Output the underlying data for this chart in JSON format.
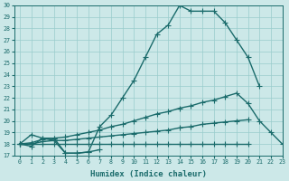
{
  "xlabel": "Humidex (Indice chaleur)",
  "background_color": "#cce8e8",
  "grid_color": "#99cccc",
  "line_color": "#1a6b6b",
  "x_values": [
    0,
    1,
    2,
    3,
    4,
    5,
    6,
    7,
    8,
    9,
    10,
    11,
    12,
    13,
    14,
    15,
    16,
    17,
    18,
    19,
    20,
    21,
    22,
    23
  ],
  "series1": [
    18,
    17.8,
    18.5,
    18.3,
    17.2,
    17.2,
    17.3,
    19.5,
    20.5,
    22.0,
    23.5,
    25.5,
    27.5,
    28.3,
    30.0,
    29.5,
    29.5,
    29.5,
    28.5,
    27.0,
    25.5,
    23.0,
    null,
    null
  ],
  "series2": [
    18,
    18.8,
    18.5,
    18.5,
    17.2,
    17.2,
    17.3,
    17.5,
    null,
    null,
    null,
    null,
    null,
    null,
    null,
    null,
    null,
    null,
    null,
    null,
    null,
    null,
    null,
    null
  ],
  "series3": [
    18,
    18.1,
    18.4,
    18.5,
    18.6,
    18.8,
    19.0,
    19.2,
    19.5,
    19.7,
    20.0,
    20.3,
    20.6,
    20.8,
    21.1,
    21.3,
    21.6,
    21.8,
    22.1,
    22.4,
    21.5,
    20.0,
    19.0,
    18.0
  ],
  "series4": [
    18,
    18.0,
    18.2,
    18.3,
    18.3,
    18.4,
    18.5,
    18.6,
    18.7,
    18.8,
    18.9,
    19.0,
    19.1,
    19.2,
    19.4,
    19.5,
    19.7,
    19.8,
    19.9,
    20.0,
    20.1,
    null,
    null,
    null
  ],
  "series5": [
    18,
    18.0,
    18.0,
    18.0,
    18.0,
    18.0,
    18.0,
    18.0,
    18.0,
    18.0,
    18.0,
    18.0,
    18.0,
    18.0,
    18.0,
    18.0,
    18.0,
    18.0,
    18.0,
    18.0,
    18.0,
    null,
    null,
    null
  ],
  "ylim": [
    17,
    30
  ],
  "xlim": [
    -0.5,
    23
  ],
  "yticks": [
    17,
    18,
    19,
    20,
    21,
    22,
    23,
    24,
    25,
    26,
    27,
    28,
    29,
    30
  ],
  "xticks": [
    0,
    1,
    2,
    3,
    4,
    5,
    6,
    7,
    8,
    9,
    10,
    11,
    12,
    13,
    14,
    15,
    16,
    17,
    18,
    19,
    20,
    21,
    22,
    23
  ],
  "marker": "+",
  "marker_size": 4,
  "line_width": 1.0
}
